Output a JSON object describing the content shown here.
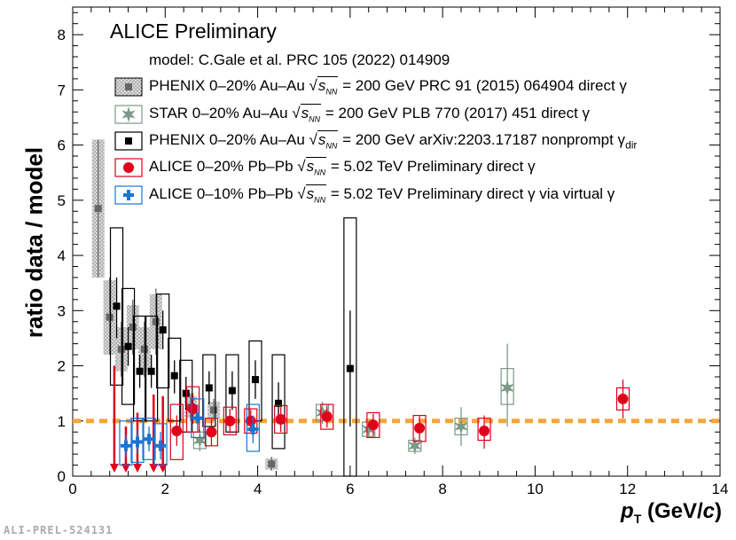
{
  "chart_data": {
    "type": "scatter",
    "title": "ALICE Preliminary",
    "ylabel": "ratio data / model",
    "xlabel": "p_T (GeV/c)",
    "xlim": [
      0,
      14
    ],
    "ylim": [
      0,
      8.5
    ],
    "xticks": [
      0,
      2,
      4,
      6,
      8,
      10,
      12,
      14
    ],
    "yticks": [
      0,
      1,
      2,
      3,
      4,
      5,
      6,
      7,
      8
    ],
    "reference_line": 1,
    "model_text": "model: C.Gale et al. PRC 105 (2022) 014909",
    "ref_id": "ALI-PREL-524131",
    "series": [
      {
        "name": "PHENIX 0–20% Au–Au",
        "legend_suffix": "= 200 GeV PRC 91 (2015) 064904 direct γ",
        "color": "#666666",
        "marker": "square-hatched",
        "points": [
          {
            "x": 0.55,
            "y": 4.85,
            "lo": 3.6,
            "hi": 6.1,
            "slo": 3.6,
            "shi": 6.1
          },
          {
            "x": 0.8,
            "y": 2.88,
            "lo": 2.2,
            "hi": 3.6,
            "slo": 2.2,
            "shi": 3.55
          },
          {
            "x": 1.05,
            "y": 2.3,
            "lo": 1.8,
            "hi": 2.8,
            "slo": 1.9,
            "shi": 2.7
          },
          {
            "x": 1.3,
            "y": 2.7,
            "lo": 2.2,
            "hi": 3.2,
            "slo": 2.3,
            "shi": 3.1
          },
          {
            "x": 1.55,
            "y": 2.3,
            "lo": 1.8,
            "hi": 2.8,
            "slo": 1.9,
            "shi": 2.7
          },
          {
            "x": 1.8,
            "y": 2.8,
            "lo": 2.2,
            "hi": 3.4,
            "slo": 2.3,
            "shi": 3.3
          },
          {
            "x": 2.55,
            "y": 1.25,
            "lo": 1.0,
            "hi": 1.5,
            "slo": 1.05,
            "shi": 1.45
          },
          {
            "x": 3.05,
            "y": 1.2,
            "lo": 1.0,
            "hi": 1.4,
            "slo": 1.05,
            "shi": 1.35
          },
          {
            "x": 4.3,
            "y": 0.22,
            "lo": 0.1,
            "hi": 0.35,
            "slo": 0.12,
            "shi": 0.32
          }
        ]
      },
      {
        "name": "STAR 0–20% Au–Au",
        "legend_suffix": "= 200 GeV PLB 770 (2017) 451 direct γ",
        "color": "#7a9a86",
        "marker": "star",
        "points": [
          {
            "x": 2.75,
            "y": 0.65,
            "lo": 0.45,
            "hi": 0.85,
            "slo": 0.5,
            "shi": 0.8
          },
          {
            "x": 5.4,
            "y": 1.15,
            "lo": 0.95,
            "hi": 1.35,
            "slo": 1.0,
            "shi": 1.3
          },
          {
            "x": 6.4,
            "y": 0.85,
            "lo": 0.7,
            "hi": 1.0,
            "slo": 0.72,
            "shi": 0.98
          },
          {
            "x": 7.4,
            "y": 0.55,
            "lo": 0.4,
            "hi": 0.7,
            "slo": 0.45,
            "shi": 0.65
          },
          {
            "x": 8.4,
            "y": 0.9,
            "lo": 0.55,
            "hi": 1.25,
            "slo": 0.75,
            "shi": 1.05
          },
          {
            "x": 9.4,
            "y": 1.6,
            "lo": 0.9,
            "hi": 2.4,
            "slo": 1.3,
            "shi": 1.95
          }
        ]
      },
      {
        "name": "PHENIX 0–20% Au–Au",
        "legend_suffix": "= 200 GeV arXiv:2203.17187 nonprompt γ",
        "legend_sub": "dir",
        "color": "#000000",
        "marker": "square",
        "points": [
          {
            "x": 0.95,
            "y": 3.08,
            "lo": 2.5,
            "hi": 3.6,
            "slo": 1.65,
            "shi": 4.5
          },
          {
            "x": 1.2,
            "y": 2.35,
            "lo": 2.0,
            "hi": 2.7,
            "slo": 1.3,
            "shi": 3.4
          },
          {
            "x": 1.45,
            "y": 1.9,
            "lo": 1.6,
            "hi": 2.2,
            "slo": 1.0,
            "shi": 2.9
          },
          {
            "x": 1.7,
            "y": 1.9,
            "lo": 1.6,
            "hi": 2.2,
            "slo": 1.0,
            "shi": 2.9
          },
          {
            "x": 1.95,
            "y": 2.65,
            "lo": 2.3,
            "hi": 3.0,
            "slo": 1.6,
            "shi": 3.3
          },
          {
            "x": 2.2,
            "y": 1.82,
            "lo": 1.5,
            "hi": 2.1,
            "slo": 1.0,
            "shi": 2.5
          },
          {
            "x": 2.45,
            "y": 1.5,
            "lo": 1.2,
            "hi": 1.8,
            "slo": 0.8,
            "shi": 2.1
          },
          {
            "x": 2.95,
            "y": 1.6,
            "lo": 1.3,
            "hi": 1.9,
            "slo": 0.9,
            "shi": 2.2
          },
          {
            "x": 3.45,
            "y": 1.55,
            "lo": 1.2,
            "hi": 1.9,
            "slo": 0.8,
            "shi": 2.2
          },
          {
            "x": 3.95,
            "y": 1.75,
            "lo": 1.4,
            "hi": 2.1,
            "slo": 1.0,
            "shi": 2.45
          },
          {
            "x": 4.45,
            "y": 1.32,
            "lo": 0.95,
            "hi": 1.7,
            "slo": 0.5,
            "shi": 2.2
          },
          {
            "x": 6.0,
            "y": 1.95,
            "lo": 0.9,
            "hi": 3.0,
            "slo": 0.0,
            "shi": 4.68
          }
        ]
      },
      {
        "name": "ALICE 0–20% Pb–Pb",
        "legend_suffix": "= 5.02 TeV Preliminary direct γ",
        "color": "#e0001b",
        "marker": "circle",
        "points": [
          {
            "x": 2.25,
            "y": 0.82,
            "lo": 0.55,
            "hi": 1.1,
            "slo": 0.3,
            "shi": 1.3
          },
          {
            "x": 2.6,
            "y": 1.22,
            "lo": 0.95,
            "hi": 1.5,
            "slo": 0.8,
            "shi": 1.62
          },
          {
            "x": 3.0,
            "y": 0.8,
            "lo": 0.55,
            "hi": 1.05,
            "slo": 0.55,
            "shi": 1.05
          },
          {
            "x": 3.4,
            "y": 1.0,
            "lo": 0.78,
            "hi": 1.22,
            "slo": 0.75,
            "shi": 1.25
          },
          {
            "x": 3.85,
            "y": 1.0,
            "lo": 0.8,
            "hi": 1.2,
            "slo": 0.78,
            "shi": 1.22
          },
          {
            "x": 4.5,
            "y": 1.03,
            "lo": 0.8,
            "hi": 1.25,
            "slo": 0.78,
            "shi": 1.28
          },
          {
            "x": 5.5,
            "y": 1.08,
            "lo": 0.88,
            "hi": 1.28,
            "slo": 0.85,
            "shi": 1.3
          },
          {
            "x": 6.5,
            "y": 0.93,
            "lo": 0.73,
            "hi": 1.13,
            "slo": 0.7,
            "shi": 1.15
          },
          {
            "x": 7.5,
            "y": 0.87,
            "lo": 0.65,
            "hi": 1.09,
            "slo": 0.63,
            "shi": 1.1
          },
          {
            "x": 8.9,
            "y": 0.82,
            "lo": 0.5,
            "hi": 1.1,
            "slo": 0.65,
            "shi": 1.05
          },
          {
            "x": 11.9,
            "y": 1.4,
            "lo": 1.05,
            "hi": 1.75,
            "slo": 1.2,
            "shi": 1.6
          }
        ],
        "upper_limits": [
          {
            "x": 0.9,
            "y": 2.0
          },
          {
            "x": 1.15,
            "y": 0.9
          },
          {
            "x": 1.4,
            "y": 1.15
          },
          {
            "x": 1.75,
            "y": 1.48
          },
          {
            "x": 1.95,
            "y": 1.45
          }
        ]
      },
      {
        "name": "ALICE 0–10% Pb–Pb",
        "legend_suffix": "= 5.02 TeV Preliminary direct γ via virtual γ",
        "color": "#1a74d4",
        "marker": "cross",
        "points": [
          {
            "x": 1.15,
            "y": 0.55,
            "lo": 0.35,
            "hi": 0.75,
            "slo": 0.2,
            "shi": 1.0
          },
          {
            "x": 1.4,
            "y": 0.62,
            "lo": 0.4,
            "hi": 0.85,
            "slo": 0.25,
            "shi": 1.05
          },
          {
            "x": 1.65,
            "y": 0.67,
            "lo": 0.45,
            "hi": 0.9,
            "slo": 0.3,
            "shi": 1.05
          },
          {
            "x": 1.9,
            "y": 0.55,
            "lo": 0.3,
            "hi": 0.8,
            "slo": 0.2,
            "shi": 0.95
          },
          {
            "x": 2.7,
            "y": 1.05,
            "lo": 0.8,
            "hi": 1.3,
            "slo": 0.7,
            "shi": 1.4
          },
          {
            "x": 3.9,
            "y": 0.85,
            "lo": 0.6,
            "hi": 1.1,
            "slo": 0.45,
            "shi": 1.3
          }
        ]
      }
    ]
  }
}
